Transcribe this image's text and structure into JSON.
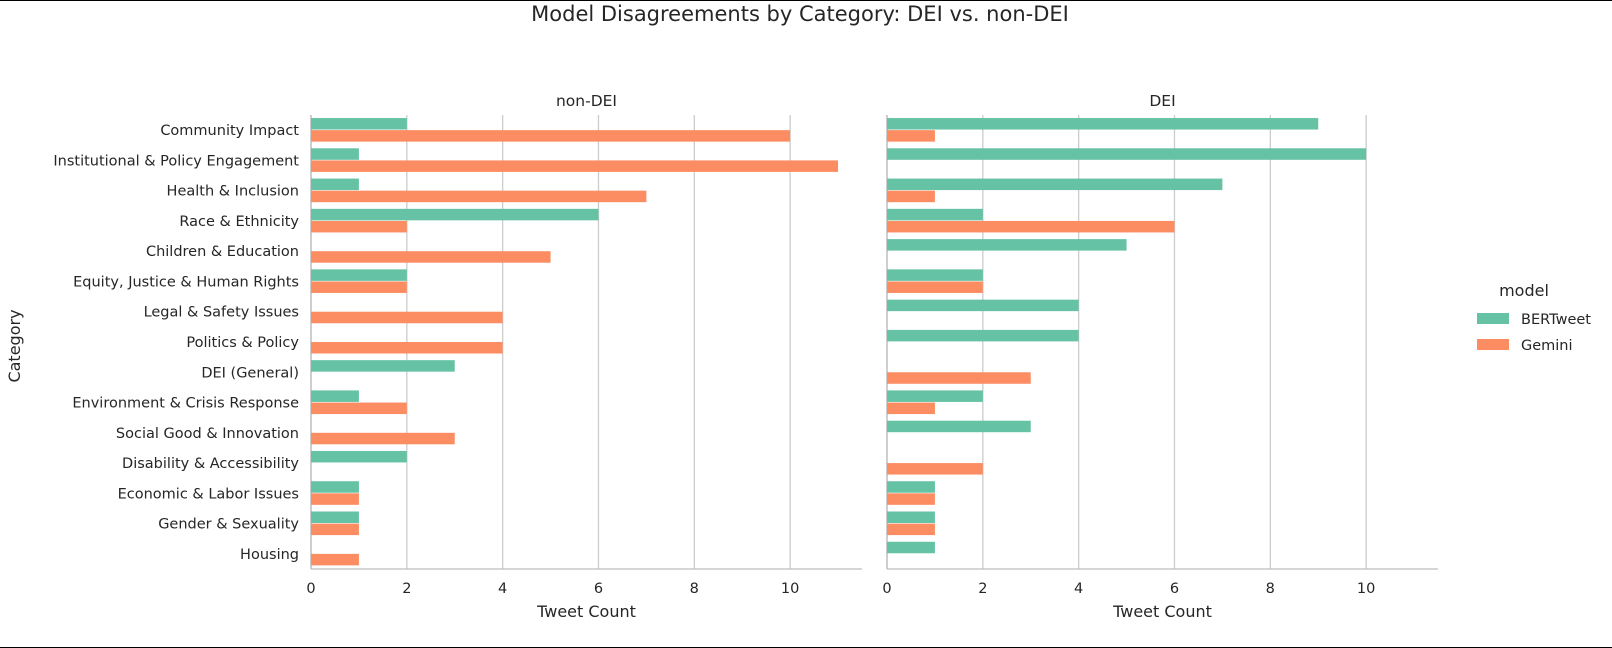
{
  "chart_data": {
    "type": "bar",
    "orientation": "horizontal",
    "title": "Model Disagreements by Category: DEI vs. non-DEI",
    "xlabel": "Tweet Count",
    "ylabel": "Category",
    "xlim": [
      0,
      11.5
    ],
    "xticks": [
      "0",
      "2",
      "4",
      "6",
      "8",
      "10"
    ],
    "grid": true,
    "legend": {
      "title": "model",
      "placement": "right",
      "entries": [
        "BERTweet",
        "Gemini"
      ]
    },
    "colors": {
      "BERTweet": "#66c2a5",
      "Gemini": "#fc8d62"
    },
    "categories": [
      "Community Impact",
      "Institutional & Policy Engagement",
      "Health & Inclusion",
      "Race & Ethnicity",
      "Children & Education",
      "Equity, Justice & Human Rights",
      "Legal & Safety Issues",
      "Politics & Policy",
      "DEI (General)",
      "Environment & Crisis Response",
      "Social Good & Innovation",
      "Disability & Accessibility",
      "Economic & Labor Issues",
      "Gender & Sexuality",
      "Housing"
    ],
    "panels": [
      {
        "title": "non-DEI",
        "series": [
          {
            "name": "BERTweet",
            "values": [
              2,
              1,
              1,
              6,
              0,
              2,
              0,
              0,
              3,
              1,
              0,
              2,
              1,
              1,
              0
            ]
          },
          {
            "name": "Gemini",
            "values": [
              10,
              11,
              7,
              2,
              5,
              2,
              4,
              4,
              0,
              2,
              3,
              0,
              1,
              1,
              1
            ]
          }
        ]
      },
      {
        "title": "DEI",
        "series": [
          {
            "name": "BERTweet",
            "values": [
              9,
              10,
              7,
              2,
              5,
              2,
              4,
              4,
              0,
              2,
              3,
              0,
              1,
              1,
              1
            ]
          },
          {
            "name": "Gemini",
            "values": [
              1,
              0,
              1,
              6,
              0,
              2,
              0,
              0,
              3,
              1,
              0,
              2,
              1,
              1,
              0
            ]
          }
        ]
      }
    ]
  }
}
